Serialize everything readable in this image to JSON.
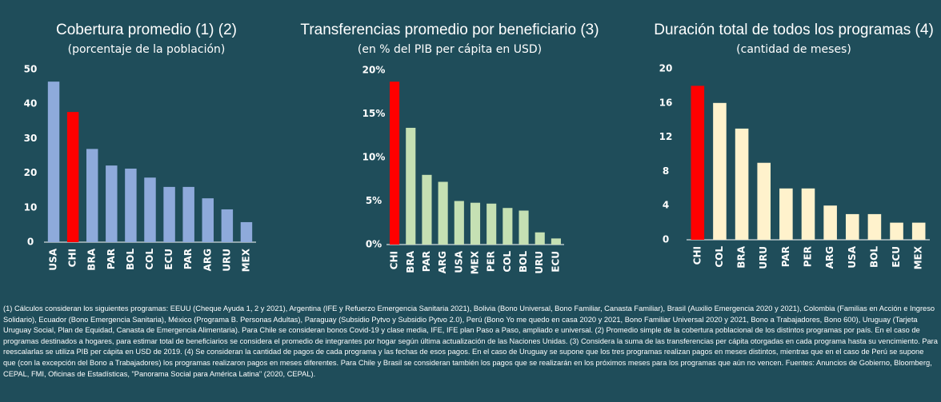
{
  "chart_data": [
    {
      "type": "bar",
      "title": "Cobertura promedio (1) (2)",
      "subtitle": "(porcentaje de la población)",
      "categories": [
        "USA",
        "CHI",
        "BRA",
        "PAR",
        "BOL",
        "COL",
        "ECU",
        "PAR",
        "ARG",
        "URU",
        "MEX"
      ],
      "values": [
        46.5,
        37.7,
        27,
        22.2,
        21.3,
        18.7,
        16,
        16,
        12.7,
        9.5,
        5.8
      ],
      "colors": [
        "#8eaadb",
        "#ff0000",
        "#8eaadb",
        "#8eaadb",
        "#8eaadb",
        "#8eaadb",
        "#8eaadb",
        "#8eaadb",
        "#8eaadb",
        "#8eaadb",
        "#8eaadb"
      ],
      "ylim": [
        0,
        50
      ],
      "yticks": [
        0,
        10,
        20,
        30,
        40,
        50
      ]
    },
    {
      "type": "bar",
      "title": "Transferencias promedio por beneficiario (3)",
      "subtitle": "(en % del PIB per cápita en USD)",
      "categories": [
        "CHI",
        "BRA",
        "PAR",
        "ARG",
        "USA",
        "MEX",
        "PER",
        "COL",
        "BOL",
        "URU",
        "ECU"
      ],
      "values": [
        18.7,
        13.4,
        8.0,
        7.2,
        5.0,
        4.8,
        4.7,
        4.2,
        3.9,
        1.4,
        0.7
      ],
      "colors": [
        "#ff0000",
        "#c5e0b3",
        "#c5e0b3",
        "#c5e0b3",
        "#c5e0b3",
        "#c5e0b3",
        "#c5e0b3",
        "#c5e0b3",
        "#c5e0b3",
        "#c5e0b3",
        "#c5e0b3"
      ],
      "ylim": [
        0,
        20
      ],
      "yticks": [
        {
          "value": 0,
          "label": "0%"
        },
        {
          "value": 5,
          "label": "5%"
        },
        {
          "value": 10,
          "label": "10%"
        },
        {
          "value": 15,
          "label": "15%"
        },
        {
          "value": 20,
          "label": "20%"
        }
      ]
    },
    {
      "type": "bar",
      "title": "Duración total de todos los programas (4)",
      "subtitle": "(cantidad de meses)",
      "categories": [
        "CHI",
        "COL",
        "BRA",
        "URU",
        "PAR",
        "PER",
        "ARG",
        "USA",
        "BOL",
        "ECU",
        "MEX"
      ],
      "values": [
        18,
        16,
        13,
        9,
        6,
        6,
        4,
        3,
        3,
        2,
        2
      ],
      "colors": [
        "#ff0000",
        "#fff2cc",
        "#fff2cc",
        "#fff2cc",
        "#fff2cc",
        "#fff2cc",
        "#fff2cc",
        "#fff2cc",
        "#fff2cc",
        "#fff2cc",
        "#fff2cc"
      ],
      "ylim": [
        0,
        20
      ],
      "yticks": [
        0,
        4,
        8,
        12,
        16,
        20
      ]
    }
  ],
  "footnote": "(1) Cálculos consideran los siguientes programas: EEUU (Cheque Ayuda 1, 2 y 2021), Argentina (IFE y Refuerzo Emergencia Sanitaria 2021), Bolivia (Bono Universal, Bono Familiar, Canasta Familiar), Brasil (Auxilio Emergencia 2020 y 2021), Colombia (Familias en Acción e Ingreso Solidario), Ecuador (Bono Emergencia Sanitaria), México (Programa B. Personas Adultas), Paraguay (Subsidio Pytvo y Subsidio Pytvo 2.0), Perú (Bono Yo me quedo en casa 2020 y 2021, Bono Familiar Universal 2020 y 2021, Bono a Trabajadores, Bono 600), Uruguay (Tarjeta Uruguay Social, Plan de Equidad, Canasta de Emergencia Alimentaria). Para Chile se consideran bonos Covid-19 y clase media, IFE, IFE plan Paso a Paso, ampliado e universal. (2) Promedio simple de la cobertura poblacional de los distintos programas por país. En el caso de programas destinados a hogares, para estimar total de beneficiarios se considera el promedio de integrantes por hogar según última actualización de las Naciones Unidas. (3) Considera la suma de las transferencias per cápita otorgadas en cada programa hasta su vencimiento. Para reescalarlas se utiliza PIB per cápita en USD de 2019. (4) Se consideran la cantidad de pagos de cada programa y las fechas de esos pagos. En el caso de Uruguay se supone que los tres programas realizan pagos en meses distintos, mientras que en el caso de Perú se supone que (con la excepción del Bono a Trabajadores) los programas realizaron pagos en meses diferentes. Para Chile y Brasil se consideran también los pagos que se realizarán en los próximos meses para los programas que aún no vencen. Fuentes: Anuncios de Gobierno, Bloomberg, CEPAL, FMI, Oficinas de Estadísticas, \"Panorama Social para América Latina\" (2020, CEPAL)."
}
